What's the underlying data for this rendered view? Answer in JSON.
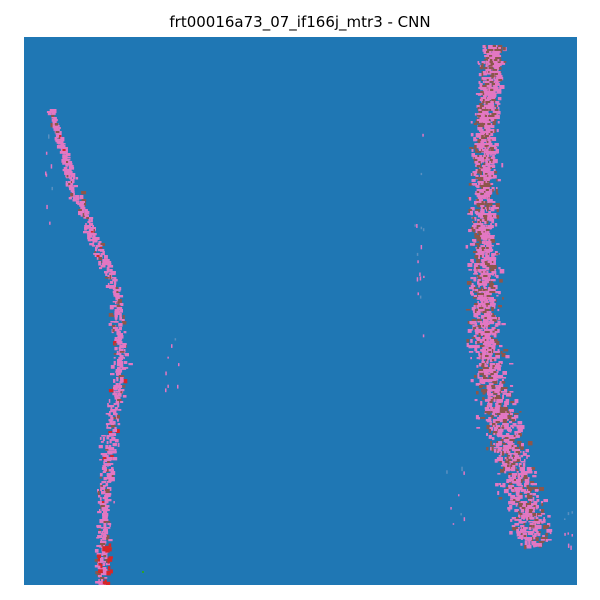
{
  "figure": {
    "title": "frt00016a73_07_if166j_mtr3 - CNN"
  },
  "colors": {
    "background_class": "#1f77b4",
    "class_pink": "#e377c2",
    "class_brown": "#8c564b",
    "class_red": "#d62728",
    "class_green": "#2ca02c"
  },
  "image": {
    "type": "classification-map",
    "features": [
      "left-streak",
      "right-streak"
    ]
  }
}
